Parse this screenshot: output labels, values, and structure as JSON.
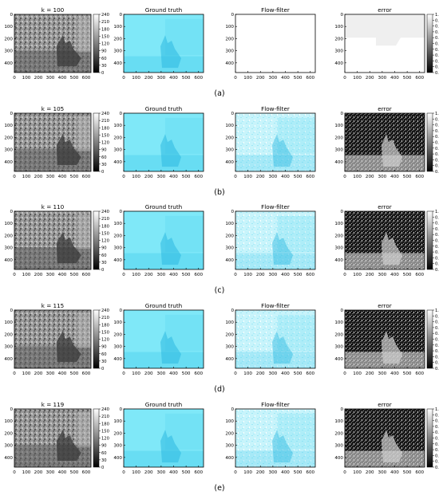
{
  "figure": {
    "panel_titles": {
      "ground_truth": "Ground truth",
      "flow_filter": "Flow-filter",
      "error": "error"
    },
    "x_ticks": [
      "0",
      "100",
      "200",
      "300",
      "400",
      "500",
      "600"
    ],
    "y_ticks": [
      "0",
      "100",
      "200",
      "300",
      "400"
    ],
    "colorbar_intensity_ticks": [
      "0",
      "30",
      "60",
      "90",
      "120",
      "150",
      "180",
      "210",
      "240"
    ],
    "colorbar_error_ticks": [
      "0.0",
      "0.1",
      "0.2",
      "0.3",
      "0.4",
      "0.5",
      "0.6",
      "0.7",
      "0.8",
      "0.9",
      "1.0"
    ],
    "rows": [
      {
        "k_title": "k = 100",
        "label": "(a)"
      },
      {
        "k_title": "k = 105",
        "label": "(b)"
      },
      {
        "k_title": "k = 110",
        "label": "(c)"
      },
      {
        "k_title": "k = 115",
        "label": "(d)"
      },
      {
        "k_title": "k = 119",
        "label": "(e)"
      }
    ]
  },
  "colors": {
    "flow_cyan": "#7fe8f8",
    "flow_light": "#c8f4fb",
    "gray_image": "#8a8a8a",
    "axis": "#000000"
  },
  "icons": [
    "sculpture-image",
    "flow-field-image",
    "error-map-image",
    "colorbar"
  ]
}
